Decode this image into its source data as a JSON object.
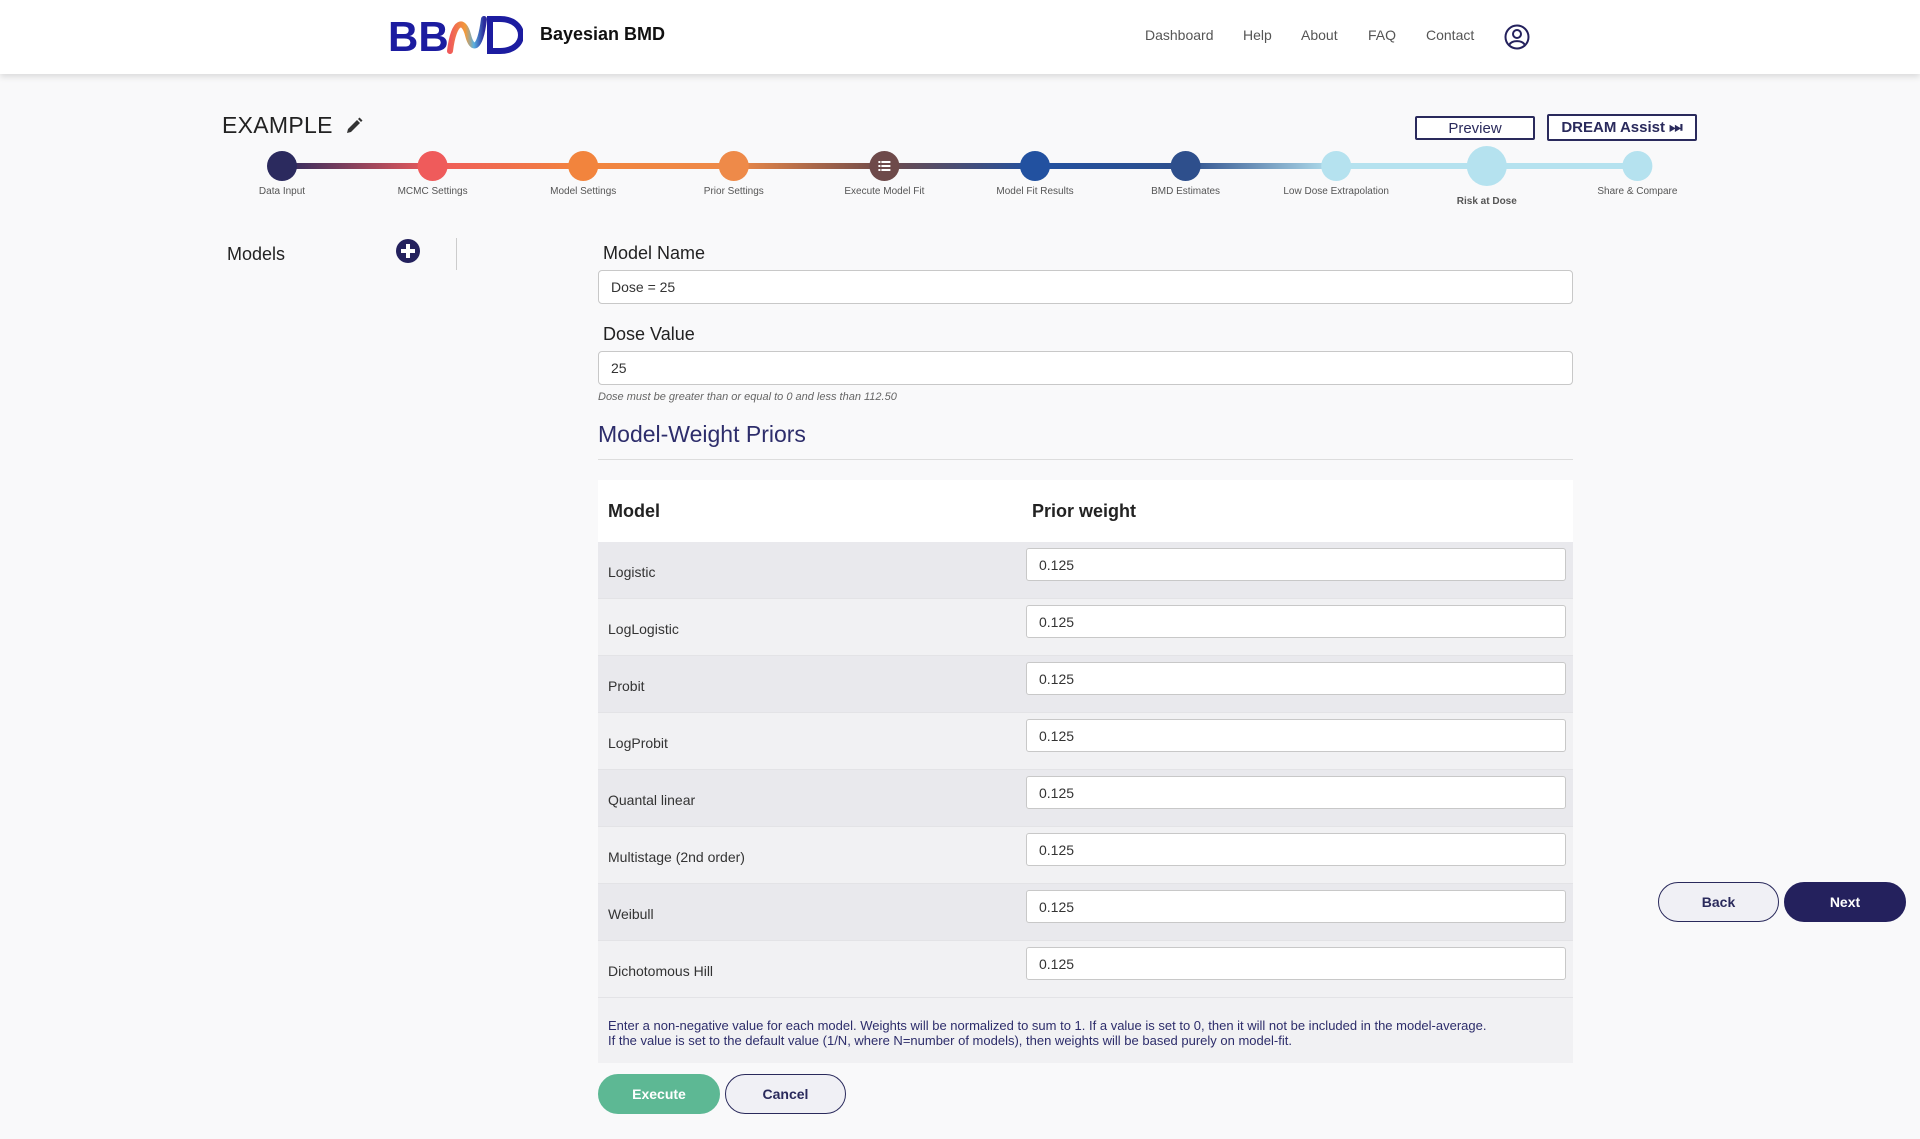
{
  "header": {
    "logo_text": "BBMD",
    "app_title": "Bayesian BMD",
    "nav": [
      "Dashboard",
      "Help",
      "About",
      "FAQ",
      "Contact"
    ]
  },
  "project": {
    "name": "EXAMPLE",
    "preview_label": "Preview",
    "dream_label": "DREAM Assist ⏭"
  },
  "stepper": {
    "active_index": 8,
    "steps": [
      {
        "label": "Data Input",
        "color": "#2b2a5e"
      },
      {
        "label": "MCMC Settings",
        "color": "#ef5b5b"
      },
      {
        "label": "Model Settings",
        "color": "#f2843d"
      },
      {
        "label": "Prior Settings",
        "color": "#ee8a49"
      },
      {
        "label": "Execute Model Fit",
        "color": "#6e4a4a"
      },
      {
        "label": "Model Fit Results",
        "color": "#2251a0"
      },
      {
        "label": "BMD Estimates",
        "color": "#2e4f8c"
      },
      {
        "label": "Low Dose Extrapolation",
        "color": "#b5e2ef"
      },
      {
        "label": "Risk at Dose",
        "color": "#b5e2ef"
      },
      {
        "label": "Share & Compare",
        "color": "#b5e2ef"
      }
    ]
  },
  "sidebar": {
    "title": "Models"
  },
  "form": {
    "model_name_label": "Model Name",
    "model_name_value": "Dose = 25",
    "dose_value_label": "Dose Value",
    "dose_value": "25",
    "dose_helper": "Dose must be greater than or equal to 0 and less than 112.50"
  },
  "priors": {
    "title": "Model-Weight Priors",
    "col_model": "Model",
    "col_weight": "Prior weight",
    "rows": [
      {
        "model": "Logistic",
        "weight": "0.125"
      },
      {
        "model": "LogLogistic",
        "weight": "0.125"
      },
      {
        "model": "Probit",
        "weight": "0.125"
      },
      {
        "model": "LogProbit",
        "weight": "0.125"
      },
      {
        "model": "Quantal linear",
        "weight": "0.125"
      },
      {
        "model": "Multistage (2nd order)",
        "weight": "0.125"
      },
      {
        "model": "Weibull",
        "weight": "0.125"
      },
      {
        "model": "Dichotomous Hill",
        "weight": "0.125"
      }
    ],
    "note_line1": "Enter a non-negative value for each model. Weights will be normalized to sum to 1. If a value is set to 0, then it will not be included in the model-average.",
    "note_line2": "If the value is set to the default value (1/N, where N=number of models), then weights will be based purely on model-fit."
  },
  "actions": {
    "execute": "Execute",
    "cancel": "Cancel",
    "back": "Back",
    "next": "Next"
  }
}
